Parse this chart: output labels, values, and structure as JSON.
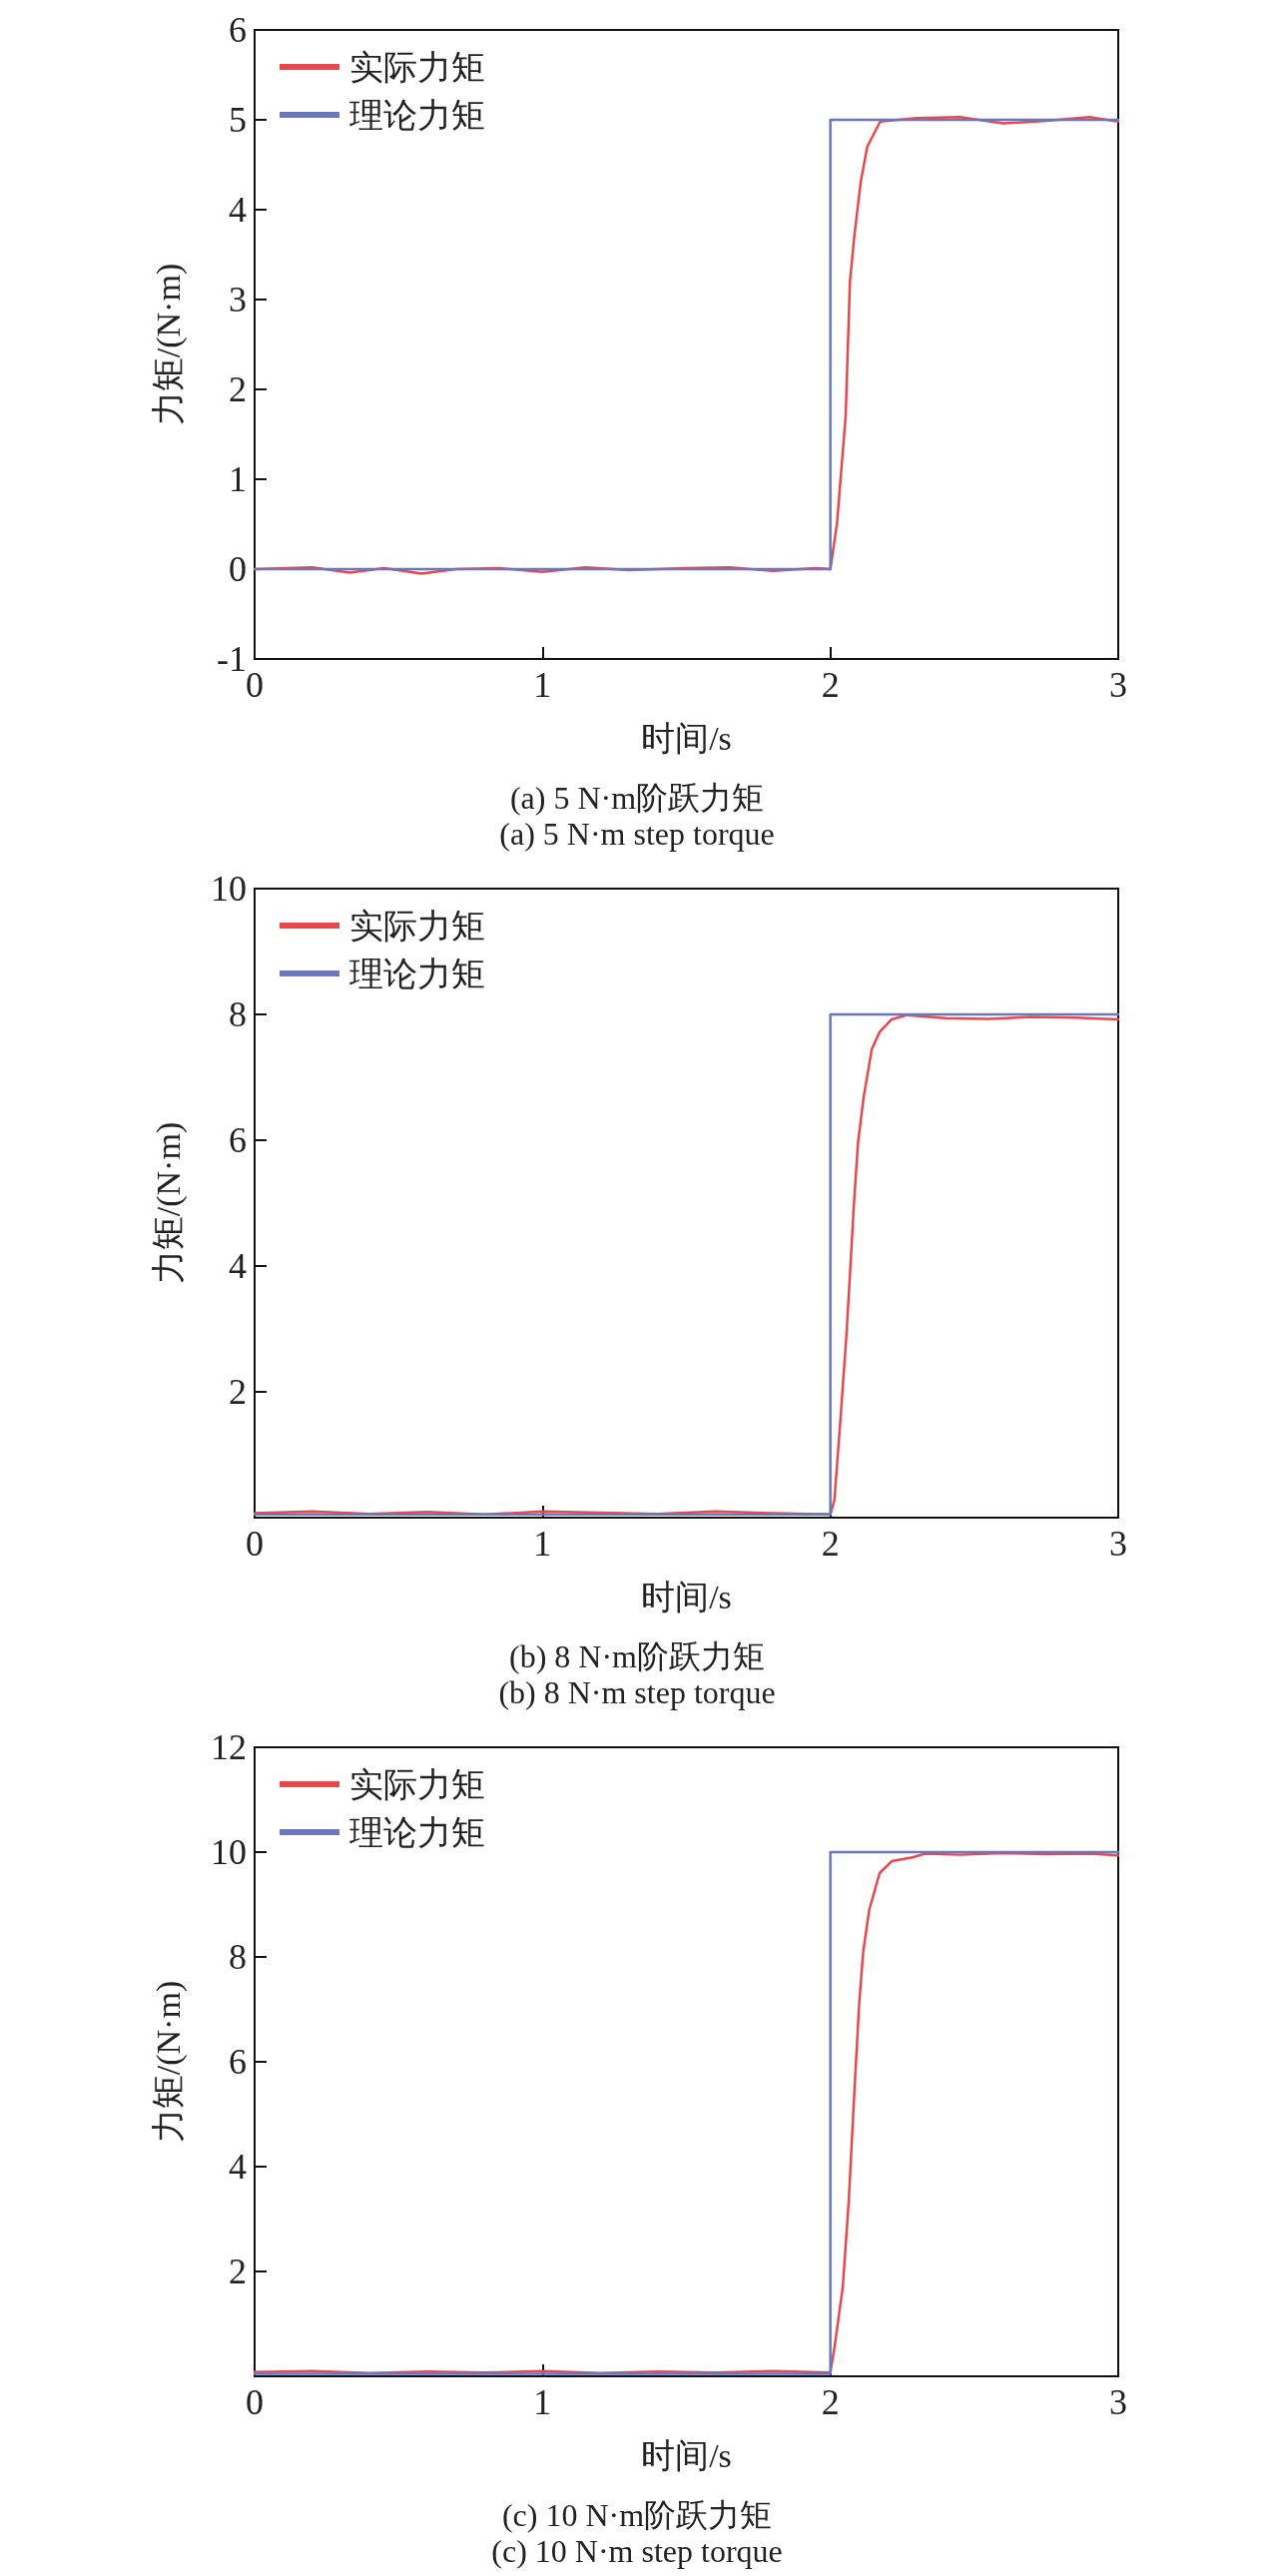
{
  "chart_data": [
    {
      "type": "line",
      "title": "(a) 5 N·m阶跃力矩",
      "subtitle": "(a) 5 N·m step torque",
      "xlabel": "时间/s",
      "ylabel": "力矩/(N·m)",
      "xlim": [
        0,
        3
      ],
      "xticks": [
        0,
        1,
        2,
        3
      ],
      "ylim": [
        -1,
        6
      ],
      "yticks": [
        -1,
        0,
        1,
        2,
        3,
        4,
        5,
        6
      ],
      "grid": false,
      "legend": "top left",
      "marker": "none",
      "line_style": "solid",
      "series": [
        {
          "name": "实际力矩",
          "color": "#e8474c",
          "x": [
            0,
            0.2,
            0.33,
            0.45,
            0.58,
            0.7,
            0.85,
            1.0,
            1.15,
            1.3,
            1.5,
            1.65,
            1.8,
            1.95,
            2.0,
            2.023,
            2.053,
            2.068,
            2.083,
            2.105,
            2.128,
            2.173,
            2.3,
            2.45,
            2.6,
            2.75,
            2.9,
            3.0
          ],
          "values": [
            0,
            0.02,
            -0.04,
            0.01,
            -0.05,
            0,
            0.01,
            -0.03,
            0.02,
            -0.01,
            0.01,
            0.02,
            -0.02,
            0.01,
            0,
            0.51,
            1.7,
            3.2,
            3.7,
            4.3,
            4.7,
            4.98,
            5.02,
            5.03,
            4.96,
            4.99,
            5.03,
            4.98
          ]
        },
        {
          "name": "理论力矩",
          "color": "#6b78c0",
          "x": [
            0,
            2,
            2,
            3
          ],
          "values": [
            0,
            0,
            5,
            5
          ]
        }
      ]
    },
    {
      "type": "line",
      "title": "(b) 8 N·m阶跃力矩",
      "subtitle": "(b) 8 N·m step torque",
      "xlabel": "时间/s",
      "ylabel": "力矩/(N·m)",
      "xlim": [
        0,
        3
      ],
      "xticks": [
        0,
        1,
        2,
        3
      ],
      "ylim": [
        0,
        10
      ],
      "yticks": [
        {
          "value": 0,
          "label": null
        },
        2,
        4,
        6,
        8,
        10
      ],
      "grid": false,
      "legend": "top left",
      "marker": "none",
      "line_style": "solid",
      "series": [
        {
          "name": "实际力矩",
          "color": "#e8474c",
          "x": [
            0,
            0.2,
            0.4,
            0.6,
            0.8,
            1.0,
            1.2,
            1.4,
            1.6,
            1.8,
            2.0,
            2.014,
            2.034,
            2.055,
            2.068,
            2.082,
            2.096,
            2.116,
            2.144,
            2.171,
            2.212,
            2.267,
            2.4,
            2.55,
            2.7,
            2.85,
            3.0
          ],
          "values": [
            0.07,
            0.1,
            0.06,
            0.09,
            0.05,
            0.1,
            0.08,
            0.06,
            0.1,
            0.07,
            0.05,
            0.28,
            1.5,
            2.85,
            3.86,
            5.0,
            5.96,
            6.7,
            7.45,
            7.72,
            7.92,
            7.99,
            7.94,
            7.93,
            7.96,
            7.95,
            7.92
          ]
        },
        {
          "name": "理论力矩",
          "color": "#6b78c0",
          "x": [
            0,
            2,
            2,
            3
          ],
          "values": [
            0.05,
            0.05,
            8,
            8
          ]
        }
      ]
    },
    {
      "type": "line",
      "title": "(c) 10 N·m阶跃力矩",
      "subtitle": "(c) 10 N·m step torque",
      "xlabel": "时间/s",
      "ylabel": "力矩/(N·m)",
      "xlim": [
        0,
        3
      ],
      "xticks": [
        0,
        1,
        2,
        3
      ],
      "ylim": [
        0,
        12
      ],
      "yticks": [
        {
          "value": 0,
          "label": null
        },
        2,
        4,
        6,
        8,
        10,
        12
      ],
      "grid": false,
      "legend": "top left",
      "marker": "none",
      "line_style": "solid",
      "series": [
        {
          "name": "实际力矩",
          "color": "#e8474c",
          "x": [
            0,
            0.2,
            0.4,
            0.6,
            0.8,
            1.0,
            1.2,
            1.4,
            1.6,
            1.8,
            2.0,
            2.014,
            2.043,
            2.064,
            2.085,
            2.1,
            2.114,
            2.135,
            2.171,
            2.214,
            2.285,
            2.328,
            2.45,
            2.6,
            2.75,
            2.9,
            3.0
          ],
          "values": [
            0.08,
            0.1,
            0.06,
            0.09,
            0.07,
            0.1,
            0.06,
            0.09,
            0.07,
            0.1,
            0.07,
            0.54,
            1.7,
            3.36,
            5.6,
            7.1,
            8.1,
            8.9,
            9.6,
            9.83,
            9.9,
            9.97,
            9.95,
            9.98,
            9.96,
            9.97,
            9.94
          ]
        },
        {
          "name": "理论力矩",
          "color": "#6b78c0",
          "x": [
            0,
            2,
            2,
            3
          ],
          "values": [
            0.05,
            0.05,
            10,
            10
          ]
        }
      ]
    }
  ]
}
